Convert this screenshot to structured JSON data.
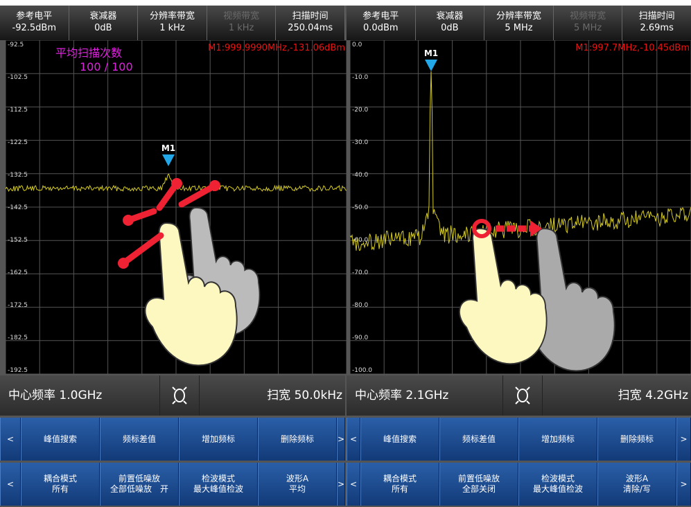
{
  "panels": [
    {
      "header": [
        {
          "label": "参考电平",
          "value": "-92.5dBm",
          "disabled": false
        },
        {
          "label": "衰减器",
          "value": "0dB",
          "disabled": false
        },
        {
          "label": "分辨率带宽",
          "value": "1 kHz",
          "disabled": false
        },
        {
          "label": "视频带宽",
          "value": "1 kHz",
          "disabled": true
        },
        {
          "label": "扫描时间",
          "value": "250.04ms",
          "disabled": false
        }
      ],
      "y_labels": [
        "-92.5",
        "-102.5",
        "-112.5",
        "-122.5",
        "-132.5",
        "-142.5",
        "-152.5",
        "-162.5",
        "-172.5",
        "-182.5",
        "-192.5"
      ],
      "marker_readout": "M1:999.9990MHz,-131.06dBm",
      "marker_label": "M1",
      "average": {
        "label": "平均扫描次数",
        "count": "100 / 100"
      },
      "center": "中心频率 1.0GHz",
      "span": "扫宽 50.0kHz",
      "prev": "<",
      "next": ">",
      "softkeys_row1": [
        "峰值搜索",
        "频标差值",
        "增加频标",
        "删除频标"
      ],
      "softkeys_row2": [
        [
          "耦合模式",
          "所有"
        ],
        [
          "前置低噪放",
          "全部低噪放　开"
        ],
        [
          "检波模式",
          "最大峰值检波"
        ],
        [
          "波形A",
          "平均"
        ]
      ]
    },
    {
      "header": [
        {
          "label": "参考电平",
          "value": "0.0dBm",
          "disabled": false
        },
        {
          "label": "衰减器",
          "value": "0dB",
          "disabled": false
        },
        {
          "label": "分辨率带宽",
          "value": "5 MHz",
          "disabled": false
        },
        {
          "label": "视频带宽",
          "value": "5 MHz",
          "disabled": true
        },
        {
          "label": "扫描时间",
          "value": "2.69ms",
          "disabled": false
        }
      ],
      "y_labels": [
        "0.0",
        "-10.0",
        "-20.0",
        "-30.0",
        "-40.0",
        "-50.0",
        "-60.0",
        "-70.0",
        "-80.0",
        "-90.0",
        "-100.0"
      ],
      "marker_readout": "M1:997.7MHz,-10.45dBm",
      "marker_label": "M1",
      "center": "中心频率 2.1GHz",
      "span": "扫宽 4.2GHz",
      "prev": "<",
      "next": ">",
      "softkeys_row1": [
        "峰值搜索",
        "频标差值",
        "增加频标",
        "删除频标"
      ],
      "softkeys_row2": [
        [
          "耦合模式",
          "所有"
        ],
        [
          "前置低噪放",
          "全部关闭"
        ],
        [
          "检波模式",
          "最大峰值检波"
        ],
        [
          "波形A",
          "清除/写"
        ]
      ]
    }
  ]
}
